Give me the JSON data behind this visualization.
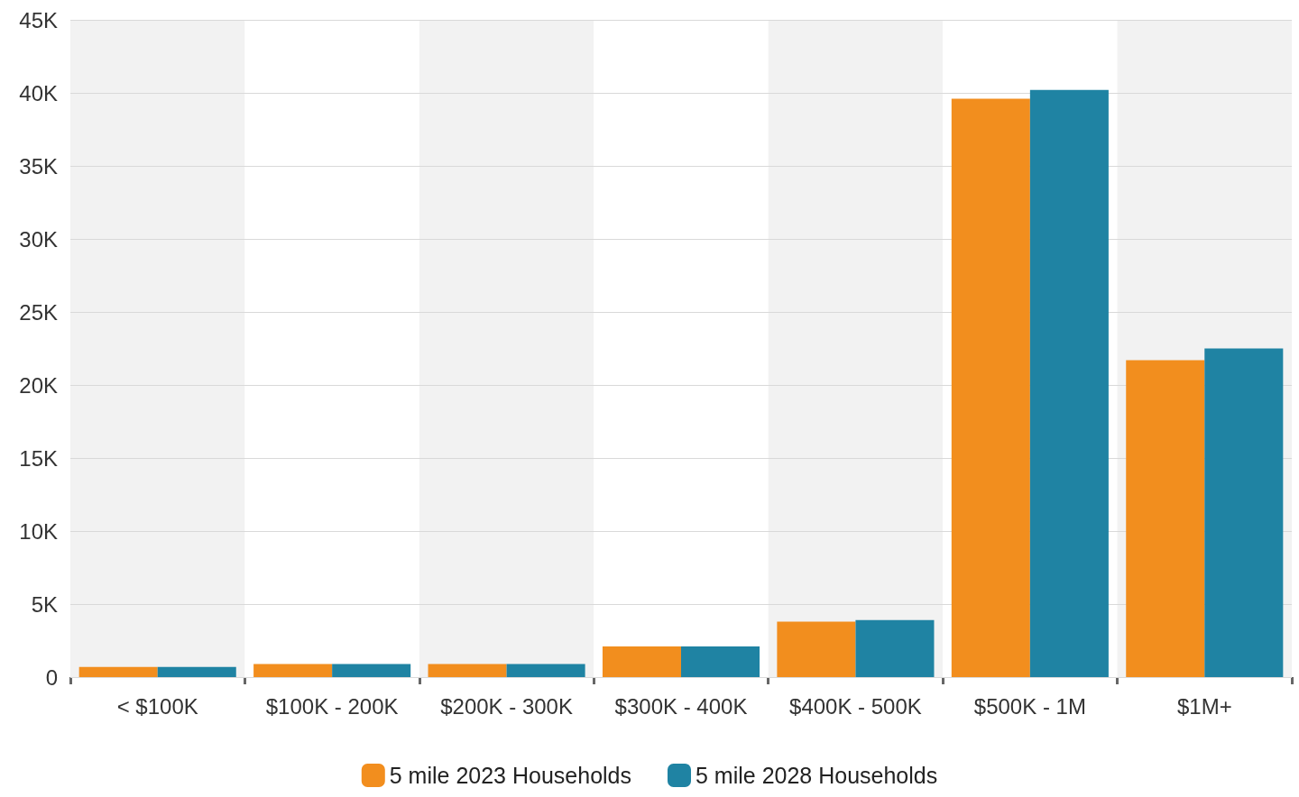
{
  "chart_data": {
    "type": "bar",
    "categories": [
      "< $100K",
      "$100K - 200K",
      "$200K - 300K",
      "$300K - 400K",
      "$400K - 500K",
      "$500K - 1M",
      "$1M+"
    ],
    "series": [
      {
        "name": "5 mile 2023 Households",
        "color": "#f28e1e",
        "values": [
          700,
          900,
          900,
          2100,
          3800,
          39600,
          21700
        ]
      },
      {
        "name": "5 mile 2028 Households",
        "color": "#1f83a3",
        "values": [
          700,
          900,
          900,
          2100,
          3900,
          40200,
          22500
        ]
      }
    ],
    "ylim": [
      0,
      45000
    ],
    "yticks": [
      0,
      {
        "value": 5000,
        "label": "5K"
      },
      {
        "value": 10000,
        "label": "10K"
      },
      {
        "value": 15000,
        "label": "15K"
      },
      {
        "value": 20000,
        "label": "20K"
      },
      {
        "value": 25000,
        "label": "25K"
      },
      {
        "value": 30000,
        "label": "30K"
      },
      {
        "value": 35000,
        "label": "35K"
      },
      {
        "value": 40000,
        "label": "40K"
      },
      {
        "value": 45000,
        "label": "45K"
      }
    ],
    "grid": "y",
    "legend": "bottom"
  }
}
